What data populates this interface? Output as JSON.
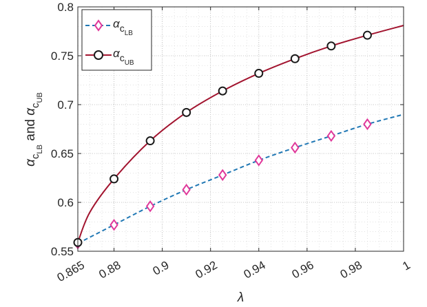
{
  "chart_data": {
    "type": "line",
    "xlabel": "λ",
    "ylabel": {
      "parts": [
        "α",
        "c",
        "LB",
        " and ",
        "α",
        "c",
        "UB"
      ]
    },
    "xlim": [
      0.865,
      1.0
    ],
    "ylim": [
      0.55,
      0.8
    ],
    "x_ticks": [
      0.865,
      0.88,
      0.9,
      0.92,
      0.94,
      0.96,
      0.98,
      1.0
    ],
    "x_tick_labels": [
      "0.865",
      "0.88",
      "0.9",
      "0.92",
      "0.94",
      "0.96",
      "0.98",
      "1"
    ],
    "y_ticks": [
      0.55,
      0.6,
      0.65,
      0.7,
      0.75,
      0.8
    ],
    "y_tick_labels": [
      "0.55",
      "0.6",
      "0.65",
      "0.7",
      "0.75",
      "0.8"
    ],
    "grid": "dotted major and minor",
    "legend_position": "top-left",
    "series": [
      {
        "name": "α_{c_{LB}}",
        "label_main": "α",
        "label_sub": "c",
        "label_subsub": "LB",
        "color": "#1f77b4",
        "line_style": "dashed",
        "marker": "diamond",
        "marker_color": "#e0389a",
        "x": [
          0.865,
          0.88,
          0.895,
          0.91,
          0.925,
          0.94,
          0.955,
          0.97,
          0.985,
          1.0
        ],
        "y": [
          0.558,
          0.577,
          0.596,
          0.613,
          0.628,
          0.643,
          0.656,
          0.668,
          0.68,
          0.69
        ],
        "marker_x": [
          0.865,
          0.88,
          0.895,
          0.91,
          0.925,
          0.94,
          0.955,
          0.97,
          0.985
        ],
        "marker_y": [
          0.558,
          0.577,
          0.596,
          0.613,
          0.628,
          0.643,
          0.656,
          0.668,
          0.68
        ]
      },
      {
        "name": "α_{c_{UB}}",
        "label_main": "α",
        "label_sub": "c",
        "label_subsub": "UB",
        "color": "#a2142f",
        "line_style": "solid",
        "marker": "circle",
        "marker_color": "#1a1a1a",
        "x": [
          0.865,
          0.87,
          0.88,
          0.895,
          0.91,
          0.925,
          0.94,
          0.955,
          0.97,
          0.985,
          1.0
        ],
        "y": [
          0.559,
          0.59,
          0.624,
          0.663,
          0.692,
          0.714,
          0.732,
          0.747,
          0.76,
          0.771,
          0.781
        ],
        "marker_x": [
          0.865,
          0.88,
          0.895,
          0.91,
          0.925,
          0.94,
          0.955,
          0.97,
          0.985
        ],
        "marker_y": [
          0.559,
          0.624,
          0.663,
          0.692,
          0.714,
          0.732,
          0.747,
          0.76,
          0.771
        ]
      }
    ]
  }
}
